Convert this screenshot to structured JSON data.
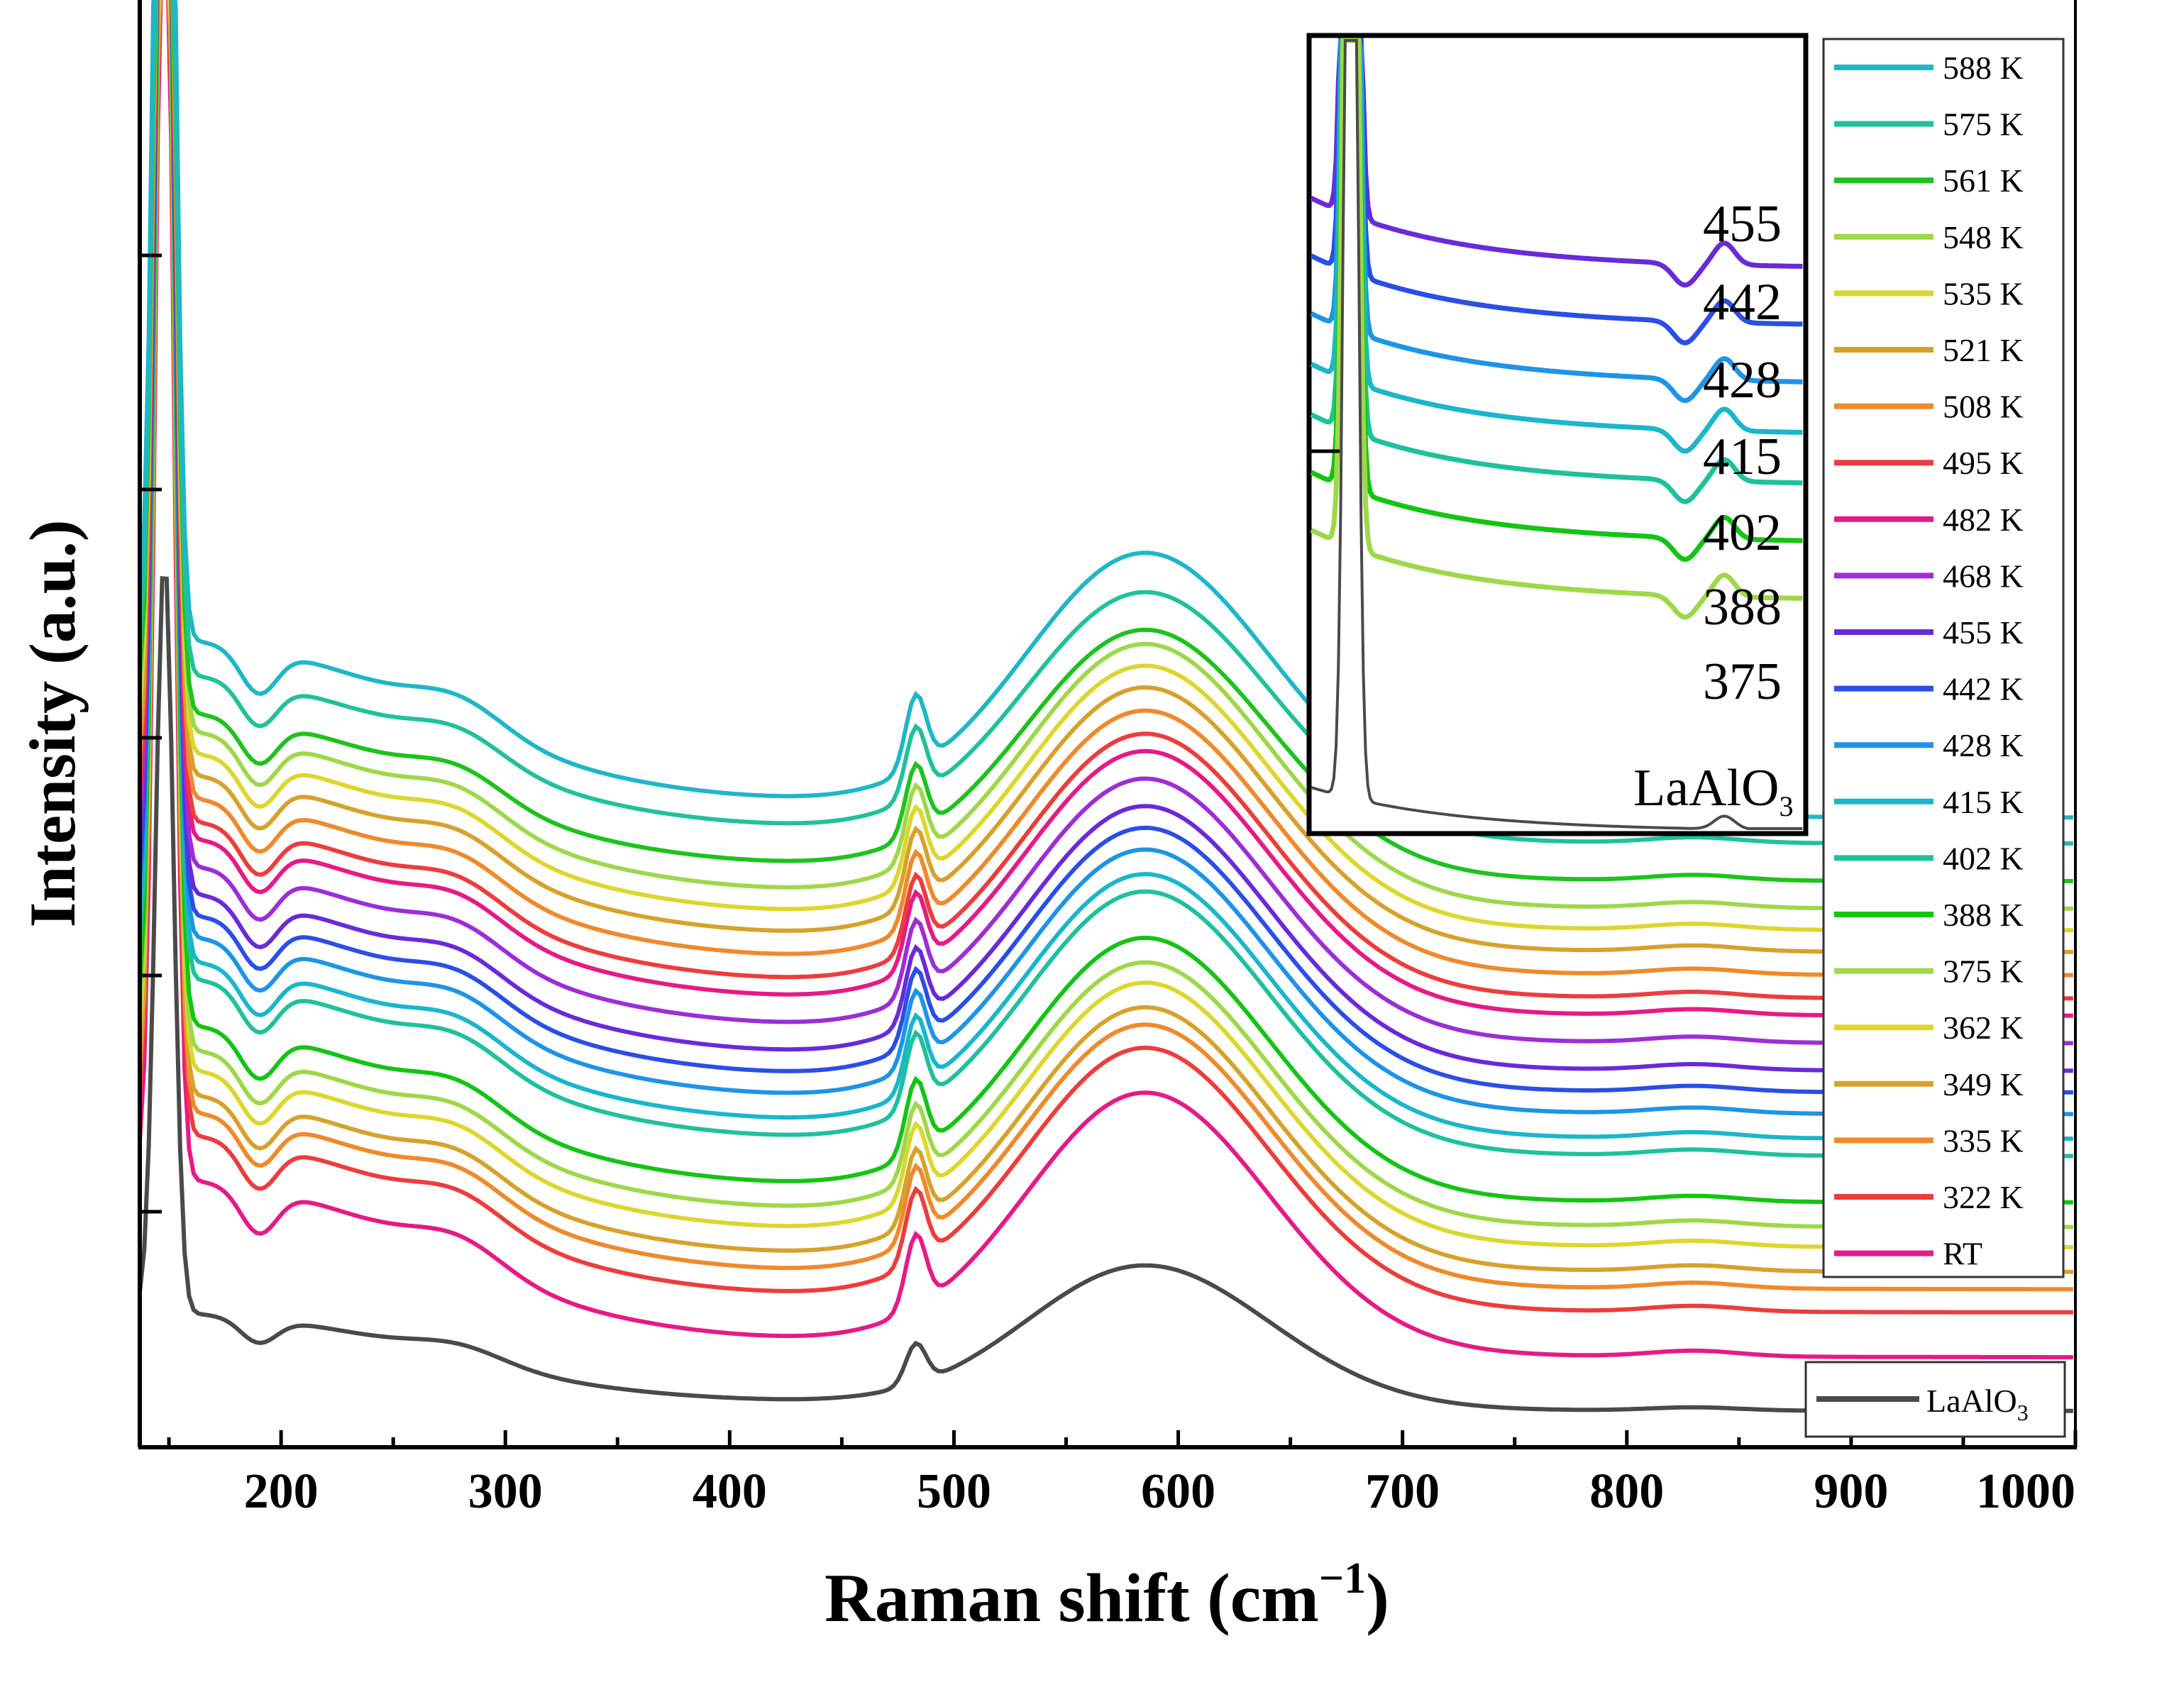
{
  "chart_data": {
    "type": "line",
    "title": "",
    "xlabel": "Raman shift (cm",
    "xlabel_sup": "−1",
    "xlabel_close": ")",
    "ylabel": "Intensity (a.u.)",
    "xlim": [
      137,
      1000
    ],
    "ylim": [
      0,
      100
    ],
    "xticks": [
      200,
      300,
      400,
      500,
      600,
      700,
      800,
      900,
      1000
    ],
    "tick_labels": [
      "200",
      "300",
      "400",
      "500",
      "600",
      "700",
      "800",
      "900",
      "1000"
    ],
    "legend_placement": "right, outside inset",
    "series": [
      {
        "name": "588 K",
        "label": "588 K",
        "color": "#1fb6c8",
        "offset": 41,
        "amp": 1.0
      },
      {
        "name": "575 K",
        "label": "575 K",
        "color": "#21c19a",
        "offset": 39.2,
        "amp": 0.95
      },
      {
        "name": "561 K",
        "label": "561 K",
        "color": "#1ec21e",
        "offset": 36.6,
        "amp": 0.95
      },
      {
        "name": "548 K",
        "label": "548 K",
        "color": "#9ed84a",
        "offset": 34.7,
        "amp": 1.0
      },
      {
        "name": "535 K",
        "label": "535 K",
        "color": "#ddd62e",
        "offset": 33.2,
        "amp": 1.0
      },
      {
        "name": "521 K",
        "label": "521 K",
        "color": "#d6a22c",
        "offset": 31.7,
        "amp": 1.0
      },
      {
        "name": "508 K",
        "label": "508 K",
        "color": "#ee8a2c",
        "offset": 30.1,
        "amp": 1.0
      },
      {
        "name": "495 K",
        "label": "495 K",
        "color": "#ec3d3d",
        "offset": 28.5,
        "amp": 1.0
      },
      {
        "name": "482 K",
        "label": "482 K",
        "color": "#e61a86",
        "offset": 27.3,
        "amp": 1.0
      },
      {
        "name": "468 K",
        "label": "468 K",
        "color": "#9c2ed6",
        "offset": 25.4,
        "amp": 1.0
      },
      {
        "name": "455 K",
        "label": "455 K",
        "color": "#6a2ad8",
        "offset": 23.5,
        "amp": 1.0
      },
      {
        "name": "442 K",
        "label": "442 K",
        "color": "#2a4ee6",
        "offset": 22.0,
        "amp": 1.0
      },
      {
        "name": "428 K",
        "label": "428 K",
        "color": "#1e94e6",
        "offset": 20.5,
        "amp": 1.0
      },
      {
        "name": "415 K",
        "label": "415 K",
        "color": "#1ab6cc",
        "offset": 18.8,
        "amp": 1.0
      },
      {
        "name": "402 K",
        "label": "402 K",
        "color": "#1fc19c",
        "offset": 17.6,
        "amp": 1.0
      },
      {
        "name": "388 K",
        "label": "388 K",
        "color": "#14c414",
        "offset": 14.4,
        "amp": 1.0
      },
      {
        "name": "375 K",
        "label": "375 K",
        "color": "#9ed84a",
        "offset": 12.7,
        "amp": 1.0
      },
      {
        "name": "362 K",
        "label": "362 K",
        "color": "#ddd62e",
        "offset": 11.3,
        "amp": 1.0
      },
      {
        "name": "349 K",
        "label": "349 K",
        "color": "#d6a22c",
        "offset": 9.6,
        "amp": 1.0
      },
      {
        "name": "335 K",
        "label": "335 K",
        "color": "#ee8a2c",
        "offset": 8.4,
        "amp": 1.0
      },
      {
        "name": "322 K",
        "label": "322 K",
        "color": "#ec3d3d",
        "offset": 6.8,
        "amp": 1.0
      },
      {
        "name": "RT",
        "label": "RT",
        "color": "#e61a86",
        "offset": 3.7,
        "amp": 1.0
      },
      {
        "name": "LaAlO3",
        "label": "LaAlO",
        "label_sub": "3",
        "color": "#4a4a4a",
        "offset": 0,
        "amp": 0.55
      }
    ],
    "inset": {
      "labels": [
        "455",
        "442",
        "428",
        "415",
        "402",
        "388",
        "375"
      ],
      "sample_label": "LaAlO",
      "sample_label_sub": "3",
      "series": [
        "455 K",
        "442 K",
        "428 K",
        "415 K",
        "402 K",
        "388 K",
        "375 K",
        "LaAlO3"
      ]
    }
  }
}
